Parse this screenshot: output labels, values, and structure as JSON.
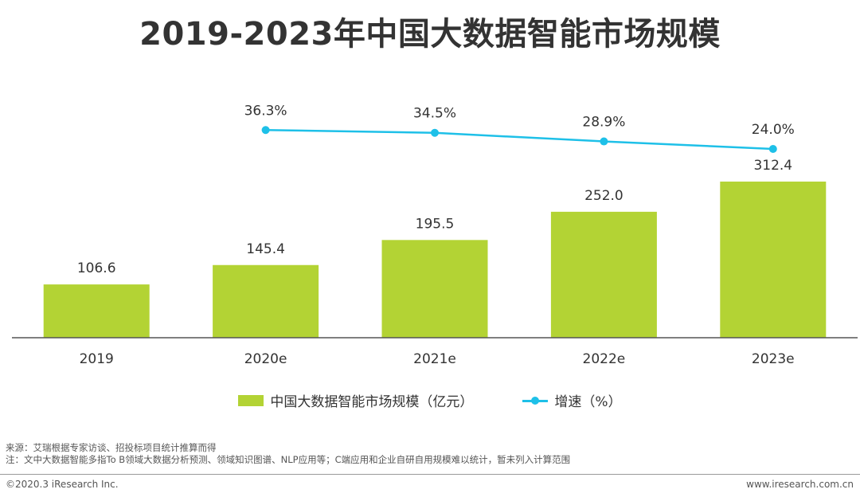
{
  "chart_data": {
    "type": "bar+line",
    "title": "2019-2023年中国大数据智能市场规模",
    "categories": [
      "2019",
      "2020e",
      "2021e",
      "2022e",
      "2023e"
    ],
    "series": [
      {
        "name": "中国大数据智能市场规模（亿元）",
        "type": "bar",
        "values": [
          106.6,
          145.4,
          195.5,
          252.0,
          312.4
        ],
        "labels": [
          "106.6",
          "145.4",
          "195.5",
          "252.0",
          "312.4"
        ],
        "color": "#b3d334"
      },
      {
        "name": "增速（%）",
        "type": "line",
        "values": [
          null,
          36.3,
          34.5,
          28.9,
          24.0
        ],
        "labels": [
          "",
          "36.3%",
          "34.5%",
          "28.9%",
          "24.0%"
        ],
        "color": "#1ec0e8"
      }
    ]
  },
  "legend": {
    "bar_label": "中国大数据智能市场规模（亿元）",
    "line_label": "增速（%）"
  },
  "notes": {
    "source": "来源：艾瑞根据专家访谈、招投标项目统计推算而得",
    "note": "注：文中大数据智能多指To B领域大数据分析预测、领域知识图谱、NLP应用等；C端应用和企业自研自用规模难以统计，暂未列入计算范围"
  },
  "footer": {
    "copyright": "©2020.3 iResearch Inc.",
    "website": "www.iresearch.com.cn"
  }
}
